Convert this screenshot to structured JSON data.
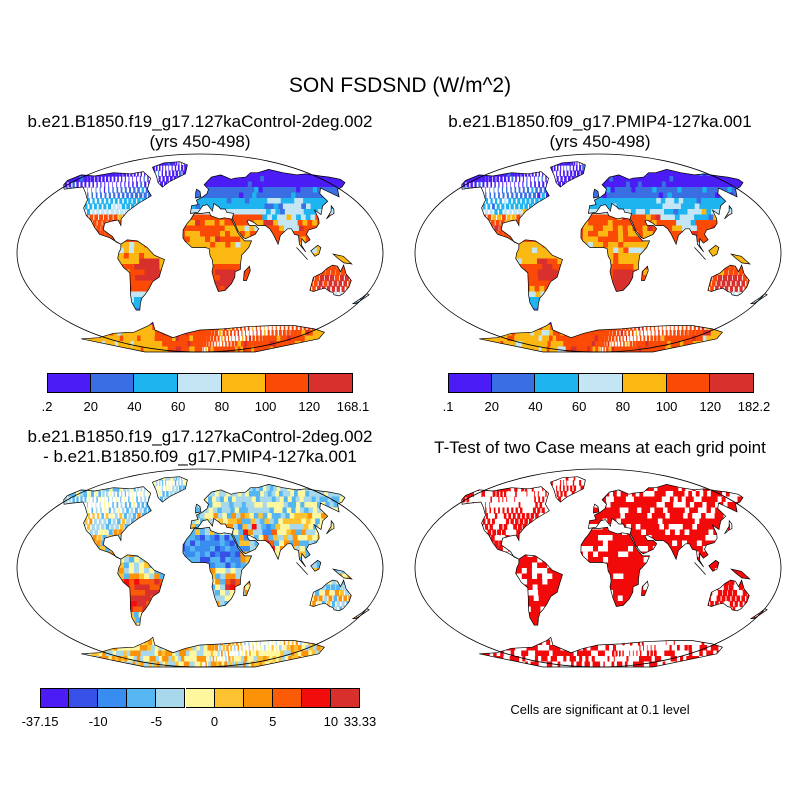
{
  "title": "SON FSDSND (W/m^2)",
  "panels": [
    {
      "title_line1": "b.e21.B1850.f19_g17.127kaControl-2deg.002",
      "title_line2": "(yrs 450-498)"
    },
    {
      "title_line1": "b.e21.B1850.f09_g17.PMIP4-127ka.001",
      "title_line2": "(yrs 450-498)"
    },
    {
      "title_line1": "b.e21.B1850.f19_g17.127kaControl-2deg.002",
      "title_line2": "- b.e21.B1850.f09_g17.PMIP4-127ka.001"
    },
    {
      "title_line1": "T-Test of two Case means at each grid point",
      "title_line2": ""
    }
  ],
  "colorbars": [
    {
      "colors": [
        "#4b1cf5",
        "#3a6fe3",
        "#1eb4f0",
        "#c4e6f4",
        "#fcb812",
        "#fb4a06",
        "#d7302d"
      ],
      "labels": [
        ".2",
        "20",
        "40",
        "60",
        "80",
        "100",
        "120",
        "168.1"
      ]
    },
    {
      "colors": [
        "#4b1cf5",
        "#3a6fe3",
        "#1eb4f0",
        "#c4e6f4",
        "#fcb812",
        "#fb4a06",
        "#d7302d"
      ],
      "labels": [
        ".1",
        "20",
        "40",
        "60",
        "80",
        "100",
        "120",
        "182.2"
      ]
    },
    {
      "colors": [
        "#4b1cf5",
        "#3650e8",
        "#3a8df0",
        "#55b6f2",
        "#a8d8ec",
        "#fff79e",
        "#fcc230",
        "#fb9208",
        "#fb5a06",
        "#f20c0c",
        "#d7302d"
      ],
      "labels": [
        "-37.15",
        "",
        "-10",
        "",
        "-5",
        "",
        "0",
        "",
        "5",
        "",
        "10",
        "33.33"
      ]
    }
  ],
  "note": "Cells are significant at 0.1 level"
}
